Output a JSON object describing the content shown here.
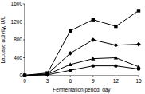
{
  "chart_data": {
    "type": "line",
    "x_label": "Fermentation period, day",
    "y_label": "Laccase activity, U/L",
    "x": [
      0,
      3,
      6,
      9,
      12,
      15
    ],
    "series": [
      {
        "color": "#000000",
        "marker": "square",
        "values": [
          10,
          60,
          1000,
          1250,
          1100,
          1450
        ]
      },
      {
        "color": "#000000",
        "marker": "diamond",
        "values": [
          10,
          40,
          500,
          800,
          680,
          700
        ]
      },
      {
        "color": "#000000",
        "marker": "triangle",
        "values": [
          5,
          30,
          250,
          380,
          400,
          200
        ]
      },
      {
        "color": "#000000",
        "marker": "circle",
        "values": [
          5,
          20,
          120,
          220,
          220,
          150
        ]
      }
    ],
    "xlim": [
      0,
      15
    ],
    "xticks": [
      0,
      3,
      6,
      9,
      12,
      15
    ],
    "ylim": [
      0,
      1600
    ],
    "yticks": [
      0,
      400,
      800,
      1200,
      1600
    ],
    "grid": false
  }
}
